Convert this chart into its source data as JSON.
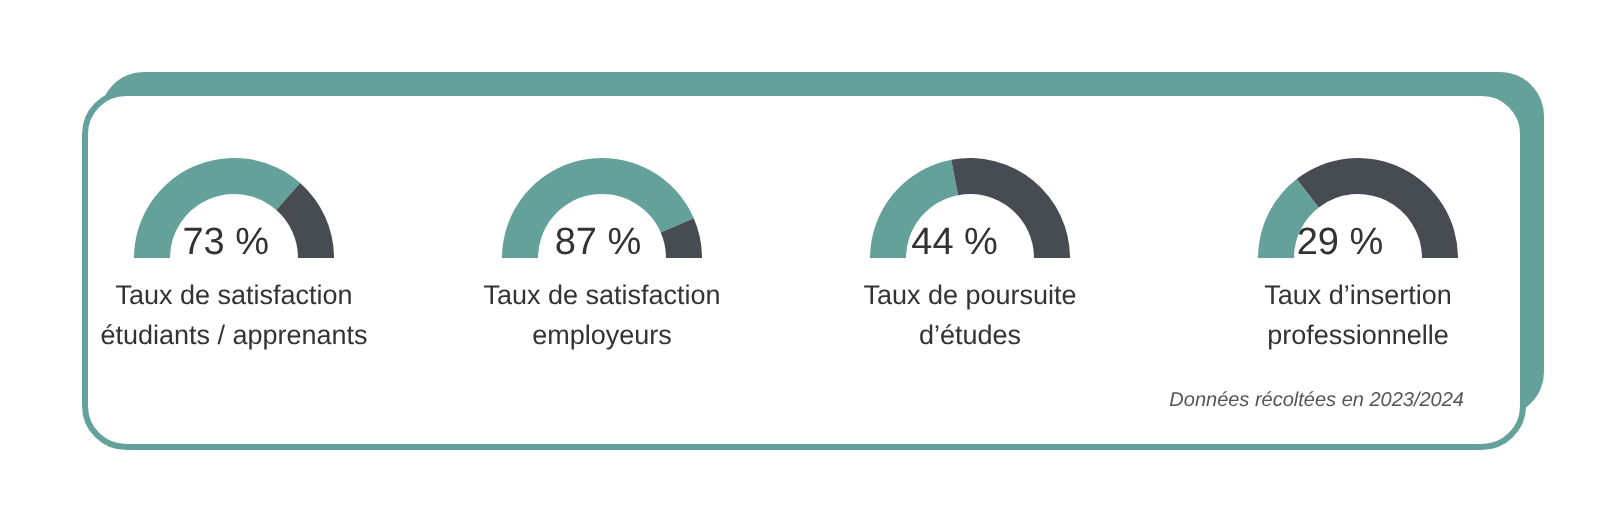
{
  "chart_data": [
    {
      "type": "donut",
      "title": "Taux de satisfaction\nétudiants / apprenants",
      "categories": [
        null,
        null
      ],
      "values": [
        73,
        27
      ],
      "colors": [
        "#64a19a",
        "#474c52"
      ],
      "value_labels": [
        "73 %",
        null
      ]
    },
    {
      "type": "donut",
      "title": "Taux de satisfaction\nemployeurs",
      "categories": [
        null,
        null
      ],
      "values": [
        87,
        13
      ],
      "colors": [
        "#64a19a",
        "#474c52"
      ],
      "value_labels": [
        "87 %",
        null
      ]
    },
    {
      "type": "donut",
      "title": "Taux de poursuite\nd’études",
      "categories": [
        null,
        null
      ],
      "values": [
        44,
        56
      ],
      "colors": [
        "#64a19a",
        "#474c52"
      ],
      "value_labels": [
        "44 %",
        null
      ]
    },
    {
      "type": "donut",
      "title": "Taux d’insertion\nprofessionnelle",
      "categories": [
        null,
        null
      ],
      "values": [
        29,
        71
      ],
      "colors": [
        "#64a19a",
        "#474c52"
      ],
      "value_labels": [
        "29 %",
        null
      ],
      "annotations": [
        "Données récoltées en 2023/2024"
      ]
    }
  ]
}
